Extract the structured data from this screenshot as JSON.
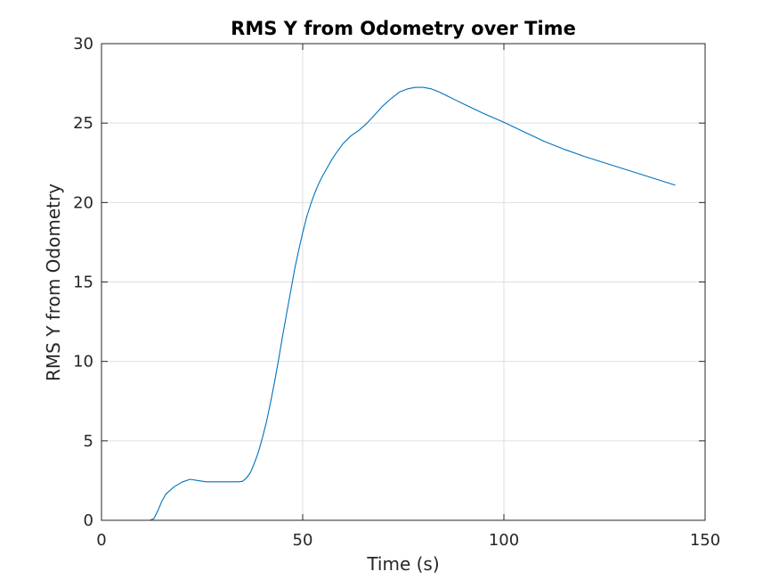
{
  "chart_data": {
    "type": "line",
    "title": "RMS Y from Odometry over Time",
    "xlabel": "Time (s)",
    "ylabel": "RMS Y from Odometry",
    "xlim": [
      0,
      150
    ],
    "ylim": [
      0,
      30
    ],
    "xticks": [
      0,
      50,
      100,
      150
    ],
    "yticks": [
      0,
      5,
      10,
      15,
      20,
      25,
      30
    ],
    "xtick_labels": [
      "0",
      "50",
      "100",
      "150"
    ],
    "ytick_labels": [
      "0",
      "5",
      "10",
      "15",
      "20",
      "25",
      "30"
    ],
    "grid": true,
    "series": [
      {
        "color": "#0072BD",
        "x": [
          4,
          8,
          12,
          13,
          14,
          15,
          16,
          18,
          20,
          22,
          24,
          26,
          28,
          30,
          32,
          34,
          35,
          36,
          37,
          38,
          39,
          40,
          41,
          42,
          43,
          44,
          45,
          46,
          47,
          48,
          49,
          50,
          51,
          52,
          53,
          54,
          55,
          56,
          57,
          58,
          59,
          60,
          62,
          64,
          66,
          68,
          70,
          72,
          74,
          76,
          78,
          80,
          82,
          84,
          86,
          88,
          90,
          95,
          100,
          105,
          110,
          115,
          120,
          125,
          130,
          135,
          140,
          142.5
        ],
        "y": [
          0,
          0,
          0,
          0.1,
          0.6,
          1.2,
          1.65,
          2.1,
          2.4,
          2.58,
          2.5,
          2.42,
          2.42,
          2.42,
          2.42,
          2.42,
          2.45,
          2.65,
          3.0,
          3.6,
          4.3,
          5.2,
          6.2,
          7.4,
          8.7,
          10.1,
          11.6,
          13.0,
          14.4,
          15.8,
          17.0,
          18.1,
          19.1,
          19.9,
          20.6,
          21.2,
          21.7,
          22.15,
          22.6,
          23.0,
          23.35,
          23.7,
          24.2,
          24.55,
          25.0,
          25.55,
          26.1,
          26.55,
          26.95,
          27.15,
          27.25,
          27.25,
          27.15,
          26.95,
          26.7,
          26.45,
          26.2,
          25.6,
          25.05,
          24.45,
          23.85,
          23.35,
          22.9,
          22.5,
          22.1,
          21.7,
          21.3,
          21.1
        ]
      }
    ]
  }
}
